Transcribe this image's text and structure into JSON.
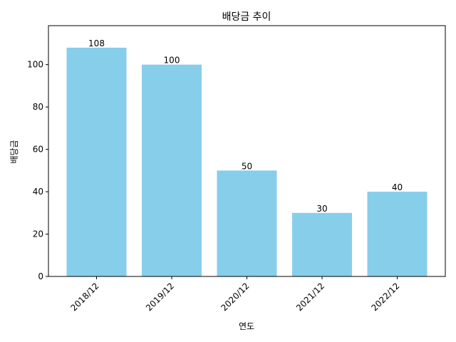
{
  "chart_data": {
    "type": "bar",
    "title": "배당금 추이",
    "xlabel": "연도",
    "ylabel": "배당금",
    "categories": [
      "2018/12",
      "2019/12",
      "2020/12",
      "2021/12",
      "2022/12"
    ],
    "values": [
      108,
      100,
      50,
      30,
      40
    ],
    "data_labels": [
      "108",
      "100",
      "50",
      "30",
      "40"
    ],
    "y_ticks": [
      0,
      20,
      40,
      60,
      80,
      100
    ],
    "ylim": [
      0,
      118.4
    ],
    "bar_color": "#87CEEB",
    "grid": false,
    "legend": "none",
    "x_tick_rotation": 45
  }
}
